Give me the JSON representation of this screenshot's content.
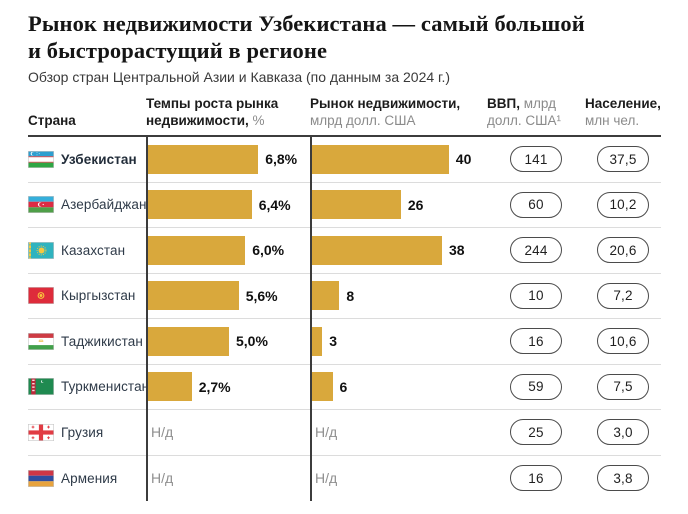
{
  "header": {
    "title_line1": "Рынок недвижимости Узбекистана — самый большой",
    "title_line2": "и быстрорастущий в регионе",
    "subtitle": "Обзор стран Центральной Азии и Кавказа (по данным за 2024 г.)"
  },
  "colors": {
    "bar": "#D9A83C",
    "axis": "#3c3c3c"
  },
  "table": {
    "na_label": "Н/д",
    "columns": [
      {
        "label": "Страна",
        "unit": ""
      },
      {
        "label": "Темпы роста рынка недвижимости,",
        "unit": "%"
      },
      {
        "label": "Рынок недвижимости,",
        "unit": "млрд долл. США"
      },
      {
        "label": "ВВП,",
        "unit": "млрд долл. США¹"
      },
      {
        "label": "Население,",
        "unit": "млн чел."
      }
    ],
    "rows": [
      {
        "country": "Узбекистан",
        "flag": "uzbekistan",
        "emphasis": true,
        "growth": "6,8%",
        "growth_val": 6.8,
        "market": "40",
        "market_val": 40,
        "gdp": "141",
        "population": "37,5"
      },
      {
        "country": "Азербайджан",
        "flag": "azerbaijan",
        "emphasis": false,
        "growth": "6,4%",
        "growth_val": 6.4,
        "market": "26",
        "market_val": 26,
        "gdp": "60",
        "population": "10,2"
      },
      {
        "country": "Казахстан",
        "flag": "kazakhstan",
        "emphasis": false,
        "growth": "6,0%",
        "growth_val": 6.0,
        "market": "38",
        "market_val": 38,
        "gdp": "244",
        "population": "20,6"
      },
      {
        "country": "Кыргызстан",
        "flag": "kyrgyzstan",
        "emphasis": false,
        "growth": "5,6%",
        "growth_val": 5.6,
        "market": "8",
        "market_val": 8,
        "gdp": "10",
        "population": "7,2"
      },
      {
        "country": "Таджикистан",
        "flag": "tajikistan",
        "emphasis": false,
        "growth": "5,0%",
        "growth_val": 5.0,
        "market": "3",
        "market_val": 3,
        "gdp": "16",
        "population": "10,6"
      },
      {
        "country": "Туркменистан",
        "flag": "turkmenistan",
        "emphasis": false,
        "growth": "2,7%",
        "growth_val": 2.7,
        "market": "6",
        "market_val": 6,
        "gdp": "59",
        "population": "7,5"
      },
      {
        "country": "Грузия",
        "flag": "georgia",
        "emphasis": false,
        "growth": null,
        "growth_val": null,
        "market": null,
        "market_val": null,
        "gdp": "25",
        "population": "3,0"
      },
      {
        "country": "Армения",
        "flag": "armenia",
        "emphasis": false,
        "growth": null,
        "growth_val": null,
        "market": null,
        "market_val": null,
        "gdp": "16",
        "population": "3,8"
      }
    ]
  },
  "chart_data": {
    "type": "bar",
    "title": "Рынок недвижимости Узбекистана — самый большой и быстрорастущий в регионе",
    "subtitle": "Обзор стран Центральной Азии и Кавказа (по данным за 2024 г.)",
    "categories": [
      "Узбекистан",
      "Азербайджан",
      "Казахстан",
      "Кыргызстан",
      "Таджикистан",
      "Туркменистан",
      "Грузия",
      "Армения"
    ],
    "series": [
      {
        "name": "Темпы роста рынка недвижимости, %",
        "values": [
          6.8,
          6.4,
          6.0,
          5.6,
          5.0,
          2.7,
          null,
          null
        ]
      },
      {
        "name": "Рынок недвижимости, млрд долл. США",
        "values": [
          40,
          26,
          38,
          8,
          3,
          6,
          null,
          null
        ]
      },
      {
        "name": "ВВП, млрд долл. США",
        "values": [
          141,
          60,
          244,
          10,
          16,
          59,
          25,
          16
        ]
      },
      {
        "name": "Население, млн чел.",
        "values": [
          37.5,
          10.2,
          20.6,
          7.2,
          10.6,
          7.5,
          3.0,
          3.8
        ]
      }
    ],
    "na_label": "Н/д",
    "bar_color": "#D9A83C",
    "orientation": "horizontal",
    "legend": "none",
    "grid": "off"
  }
}
